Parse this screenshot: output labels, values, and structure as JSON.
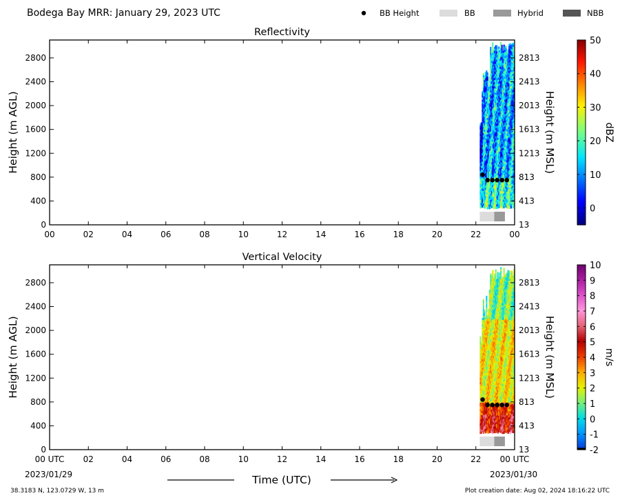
{
  "header": {
    "title": "Bodega Bay MRR:  January 29, 2023 UTC",
    "legend": [
      {
        "label": "BB Height",
        "color": "#000000",
        "icon": "dot"
      },
      {
        "label": "BB",
        "color": "#dcdcdc",
        "icon": "rect"
      },
      {
        "label": "Hybrid",
        "color": "#999999",
        "icon": "rect"
      },
      {
        "label": "NBB",
        "color": "#555555",
        "icon": "rect"
      }
    ]
  },
  "footer": {
    "location": "38.3183 N, 123.0729 W, 13 m",
    "creation": "Plot creation date: Aug 02, 2024 18:16:22 UTC",
    "xlabel": "Time (UTC)",
    "start_date": "2023/01/29",
    "end_date": "2023/01/30"
  },
  "chart_data": [
    {
      "type": "heatmap",
      "title": "Reflectivity",
      "ylabel": "Height (m AGL)",
      "ylabel_right": "Height (m MSL)",
      "x_ticks": [
        "00",
        "02",
        "04",
        "06",
        "08",
        "10",
        "12",
        "14",
        "16",
        "18",
        "20",
        "22",
        "00"
      ],
      "x_range_hours": [
        0,
        24
      ],
      "y_ticks": [
        0,
        400,
        800,
        1200,
        1600,
        2000,
        2400,
        2800
      ],
      "y_ticks_right": [
        13,
        413,
        813,
        1213,
        1613,
        2013,
        2413,
        2813
      ],
      "ylim": [
        0,
        3100
      ],
      "data_time_range_hours": [
        22.2,
        24.0
      ],
      "bb_height_points": [
        {
          "t": 22.35,
          "h": 840
        },
        {
          "t": 22.6,
          "h": 750
        },
        {
          "t": 22.85,
          "h": 750
        },
        {
          "t": 23.1,
          "h": 750
        },
        {
          "t": 23.35,
          "h": 750
        },
        {
          "t": 23.6,
          "h": 750
        }
      ],
      "bb_type_bar": [
        {
          "from": 22.2,
          "to": 22.95,
          "type": "BB"
        },
        {
          "from": 22.95,
          "to": 23.5,
          "type": "Hybrid"
        }
      ],
      "colorbar": {
        "label": "dBZ",
        "ticks": [
          0,
          10,
          20,
          30,
          40,
          50
        ],
        "range": [
          -5,
          50
        ],
        "scale": "jet"
      }
    },
    {
      "type": "heatmap",
      "title": "Vertical Velocity",
      "ylabel": "Height (m AGL)",
      "ylabel_right": "Height (m MSL)",
      "x_ticks": [
        "00 UTC",
        "02",
        "04",
        "06",
        "08",
        "10",
        "12",
        "14",
        "16",
        "18",
        "20",
        "22",
        "00 UTC"
      ],
      "x_range_hours": [
        0,
        24
      ],
      "y_ticks": [
        0,
        400,
        800,
        1200,
        1600,
        2000,
        2400,
        2800
      ],
      "y_ticks_right": [
        13,
        413,
        813,
        1213,
        1613,
        2013,
        2413,
        2813
      ],
      "ylim": [
        0,
        3100
      ],
      "data_time_range_hours": [
        22.2,
        24.0
      ],
      "bb_height_points": [
        {
          "t": 22.35,
          "h": 840
        },
        {
          "t": 22.6,
          "h": 750
        },
        {
          "t": 22.85,
          "h": 750
        },
        {
          "t": 23.1,
          "h": 750
        },
        {
          "t": 23.35,
          "h": 750
        },
        {
          "t": 23.6,
          "h": 750
        }
      ],
      "bb_type_bar": [
        {
          "from": 22.2,
          "to": 22.95,
          "type": "BB"
        },
        {
          "from": 22.95,
          "to": 23.5,
          "type": "Hybrid"
        }
      ],
      "colorbar": {
        "label": "m/s",
        "ticks": [
          -2,
          -1,
          0,
          1,
          2,
          3,
          4,
          5,
          6,
          7,
          8,
          9,
          10
        ],
        "range": [
          -2,
          10
        ],
        "scale": "velocity"
      }
    }
  ]
}
